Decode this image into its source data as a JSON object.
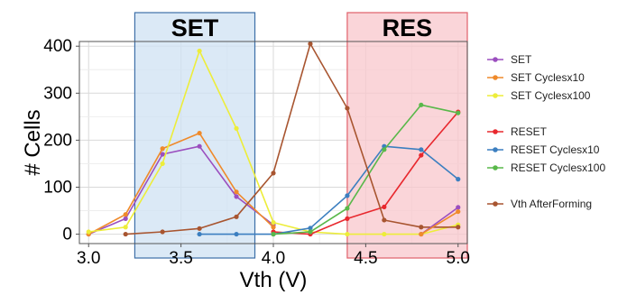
{
  "chart_data": {
    "type": "line",
    "title": "",
    "xlabel": "Vth (V)",
    "ylabel": "# Cells",
    "xlim": [
      2.95,
      5.05
    ],
    "ylim": [
      -20,
      410
    ],
    "x_ticks": [
      3.0,
      3.5,
      4.0,
      4.5,
      5.0
    ],
    "x_tick_labels": [
      "3.0",
      "3.5",
      "4.0",
      "4.5",
      "5.0"
    ],
    "y_ticks": [
      0,
      100,
      200,
      300,
      400
    ],
    "y_tick_labels": [
      "0",
      "100",
      "200",
      "300",
      "400"
    ],
    "grid": true,
    "legend_position": "right",
    "regions": [
      {
        "label": "SET",
        "x_start": 3.25,
        "x_end": 3.9,
        "fill": "#cfe2f3",
        "stroke": "#3d6fa8"
      },
      {
        "label": "RES",
        "x_start": 4.4,
        "x_end": 5.05,
        "fill": "#f8c7cc",
        "stroke": "#e0606a"
      }
    ],
    "series": [
      {
        "name": "SET",
        "color": "#9b4fbf",
        "x": [
          3.0,
          3.2,
          3.4,
          3.6,
          3.8,
          4.0
        ],
        "y": [
          0,
          33,
          170,
          187,
          80,
          20
        ]
      },
      {
        "name": "SET Cyclesx10",
        "color": "#ef8a2b",
        "x": [
          3.0,
          3.2,
          3.4,
          3.6,
          3.8,
          4.0
        ],
        "y": [
          0,
          42,
          182,
          215,
          90,
          15
        ]
      },
      {
        "name": "SET Cyclesx100",
        "color": "#eded3a",
        "x": [
          3.0,
          3.2,
          3.4,
          3.6,
          3.8,
          4.0,
          4.2,
          4.4,
          4.6,
          4.8,
          5.0
        ],
        "y": [
          5,
          15,
          150,
          390,
          225,
          25,
          5,
          0,
          0,
          0,
          20
        ]
      },
      {
        "name": "RESET",
        "color": "#e8282e",
        "x": [
          4.0,
          4.2,
          4.4,
          4.6,
          4.8,
          5.0
        ],
        "y": [
          5,
          0,
          33,
          58,
          168,
          260
        ]
      },
      {
        "name": "RESET Cyclesx10",
        "color": "#3c7fc0",
        "x": [
          3.6,
          3.8,
          4.0,
          4.2,
          4.4,
          4.6,
          4.8,
          5.0
        ],
        "y": [
          0,
          0,
          0,
          13,
          82,
          187,
          180,
          117
        ]
      },
      {
        "name": "RESET Cyclesx100",
        "color": "#59b84a",
        "x": [
          4.0,
          4.2,
          4.4,
          4.6,
          4.8,
          5.0
        ],
        "y": [
          0,
          5,
          55,
          180,
          275,
          258
        ]
      },
      {
        "name": "Vth AfterForming",
        "color": "#a85530",
        "x": [
          3.2,
          3.4,
          3.6,
          3.8,
          4.0,
          4.2,
          4.4,
          4.6,
          4.8,
          5.0
        ],
        "y": [
          0,
          5,
          12,
          37,
          130,
          405,
          268,
          30,
          15,
          15
        ]
      },
      {
        "name": "SET (tail)",
        "legend": false,
        "color": "#9b4fbf",
        "x": [
          4.8,
          5.0
        ],
        "y": [
          0,
          57
        ]
      },
      {
        "name": "SET Cyclesx10 (tail)",
        "legend": false,
        "color": "#ef8a2b",
        "x": [
          4.8,
          5.0
        ],
        "y": [
          0,
          48
        ]
      }
    ],
    "legend_groups": [
      [
        "SET",
        "SET Cyclesx10",
        "SET Cyclesx100"
      ],
      [
        "RESET",
        "RESET Cyclesx10",
        "RESET Cyclesx100"
      ],
      [
        "Vth AfterForming"
      ]
    ]
  }
}
